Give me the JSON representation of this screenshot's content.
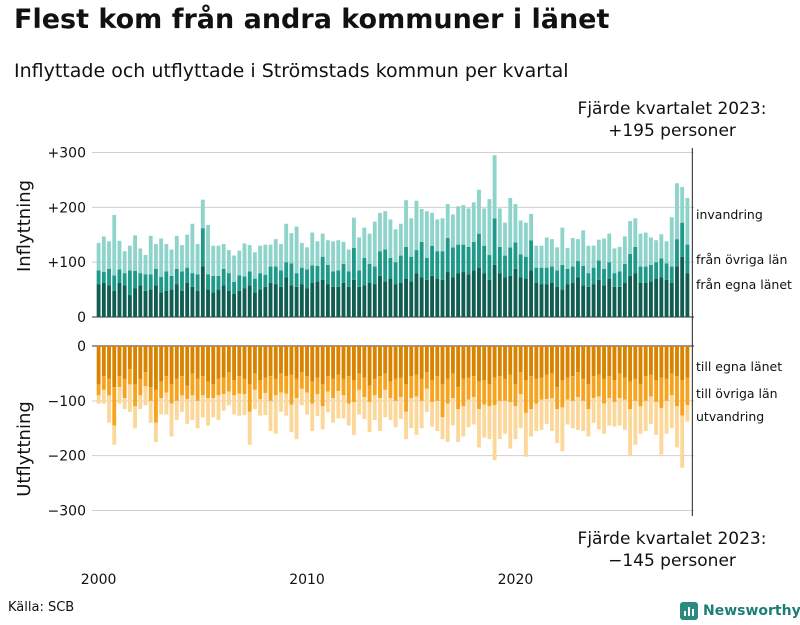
{
  "title": "Flest kom från andra kommuner i länet",
  "subtitle": "Inflyttade och utflyttade i Strömstads kommun per kvartal",
  "source": "Källa: SCB",
  "brand": "Newsworthy",
  "colors": {
    "in_egna": "#0f5e51",
    "in_ovriga": "#1e9a8b",
    "in_utland": "#8fd4cb",
    "out_egna": "#d98300",
    "out_ovriga": "#f6a41f",
    "out_utland": "#fcd79a",
    "grid": "#d0d0d0",
    "axis": "#333333",
    "marker": "#222222"
  },
  "annotations": {
    "top_line1": "Fjärde kvartalet 2023:",
    "top_line2": "+195 personer",
    "bottom_line1": "Fjärde kvartalet 2023:",
    "bottom_line2": "−145 personer"
  },
  "chart_data": {
    "type": "bar",
    "stacked": true,
    "x_label_every": 4,
    "start_year": 2000,
    "quarters_per_year": 4,
    "x_tick_labels": [
      "2000",
      "2010",
      "2020"
    ],
    "panels": [
      {
        "ylabel": "Inflyttning",
        "ylim": [
          0,
          310
        ],
        "yticks": [
          0,
          100,
          200,
          300
        ],
        "ytick_labels": [
          "0",
          "+100",
          "+200",
          "+300"
        ],
        "series": [
          {
            "name": "från egna länet",
            "values": [
              60,
              62,
              58,
              48,
              62,
              58,
              40,
              52,
              58,
              48,
              50,
              58,
              45,
              48,
              50,
              60,
              48,
              62,
              55,
              48,
              92,
              50,
              45,
              50,
              58,
              48,
              42,
              48,
              52,
              58,
              45,
              50,
              55,
              62,
              60,
              55,
              72,
              58,
              55,
              60,
              52,
              62,
              65,
              68,
              60,
              55,
              55,
              62,
              55,
              68,
              55,
              58,
              62,
              60,
              75,
              65,
              70,
              60,
              62,
              70,
              65,
              80,
              72,
              68,
              75,
              70,
              68,
              82,
              72,
              80,
              82,
              78,
              85,
              90,
              80,
              68,
              95,
              80,
              72,
              75,
              88,
              72,
              70,
              85,
              62,
              60,
              60,
              62,
              55,
              50,
              60,
              62,
              72,
              58,
              55,
              60,
              68,
              58,
              70,
              55,
              55,
              62,
              75,
              80,
              62,
              62,
              65,
              70,
              72,
              68,
              62,
              92,
              110,
              80
            ]
          },
          {
            "name": "från övriga län",
            "values": [
              25,
              20,
              30,
              28,
              25,
              22,
              45,
              32,
              22,
              30,
              28,
              30,
              28,
              35,
              25,
              28,
              35,
              28,
              25,
              30,
              70,
              28,
              30,
              25,
              30,
              32,
              22,
              28,
              22,
              25,
              25,
              30,
              22,
              30,
              32,
              30,
              28,
              40,
              25,
              30,
              35,
              32,
              28,
              42,
              35,
              28,
              30,
              35,
              28,
              58,
              30,
              50,
              35,
              32,
              45,
              58,
              38,
              40,
              50,
              58,
              45,
              42,
              65,
              40,
              55,
              50,
              52,
              62,
              55,
              52,
              50,
              50,
              52,
              62,
              50,
              45,
              85,
              48,
              40,
              52,
              48,
              42,
              40,
              55,
              28,
              30,
              30,
              30,
              30,
              45,
              28,
              30,
              30,
              35,
              25,
              30,
              35,
              30,
              30,
              25,
              28,
              35,
              40,
              48,
              30,
              30,
              30,
              30,
              35,
              30,
              30,
              50,
              62,
              52
            ]
          },
          {
            "name": "invandring",
            "values": [
              50,
              65,
              50,
              110,
              52,
              40,
              45,
              65,
              45,
              35,
              70,
              45,
              70,
              50,
              48,
              60,
              48,
              60,
              90,
              55,
              52,
              90,
              55,
              55,
              45,
              42,
              48,
              45,
              60,
              48,
              48,
              50,
              55,
              40,
              50,
              48,
              70,
              55,
              85,
              45,
              40,
              60,
              45,
              42,
              45,
              55,
              55,
              40,
              40,
              55,
              60,
              55,
              55,
              82,
              70,
              70,
              70,
              60,
              58,
              85,
              70,
              90,
              60,
              85,
              60,
              58,
              60,
              62,
              60,
              70,
              72,
              70,
              72,
              80,
              68,
              102,
              115,
              70,
              60,
              90,
              70,
              62,
              62,
              48,
              40,
              40,
              55,
              50,
              42,
              68,
              38,
              52,
              40,
              65,
              50,
              40,
              38,
              55,
              52,
              45,
              45,
              50,
              60,
              52,
              60,
              62,
              50,
              40,
              44,
              40,
              90,
              102,
              65,
              85
            ]
          }
        ],
        "label_series": [
          "invandring",
          "från övriga län",
          "från egna länet"
        ]
      },
      {
        "ylabel": "Utflyttning",
        "ylim": [
          -310,
          0
        ],
        "yticks": [
          0,
          -100,
          -200,
          -300
        ],
        "ytick_labels": [
          "0",
          "−100",
          "−200",
          "−300"
        ],
        "series": [
          {
            "name": "till egna länet",
            "values": [
              -70,
              -55,
              -60,
              -75,
              -55,
              -60,
              -42,
              -70,
              -60,
              -48,
              -75,
              -80,
              -65,
              -55,
              -70,
              -60,
              -55,
              -72,
              -50,
              -60,
              -55,
              -65,
              -70,
              -60,
              -58,
              -48,
              -62,
              -55,
              -60,
              -70,
              -50,
              -62,
              -58,
              -55,
              -60,
              -50,
              -55,
              -52,
              -60,
              -48,
              -55,
              -65,
              -58,
              -70,
              -55,
              -60,
              -52,
              -60,
              -55,
              -62,
              -50,
              -58,
              -72,
              -60,
              -55,
              -50,
              -65,
              -60,
              -58,
              -70,
              -55,
              -52,
              -60,
              -48,
              -62,
              -55,
              -70,
              -60,
              -50,
              -75,
              -60,
              -58,
              -55,
              -65,
              -62,
              -70,
              -58,
              -55,
              -60,
              -52,
              -70,
              -48,
              -62,
              -55,
              -60,
              -58,
              -52,
              -50,
              -75,
              -62,
              -58,
              -55,
              -48,
              -60,
              -70,
              -55,
              -52,
              -60,
              -55,
              -62,
              -50,
              -58,
              -65,
              -60,
              -70,
              -55,
              -52,
              -62,
              -58,
              -60,
              -50,
              -55,
              -62,
              -58
            ]
          },
          {
            "name": "till övriga län",
            "values": [
              -20,
              -25,
              -30,
              -70,
              -20,
              -35,
              -28,
              -40,
              -30,
              -25,
              -25,
              -60,
              -30,
              -30,
              -35,
              -40,
              -35,
              -25,
              -40,
              -40,
              -35,
              -30,
              -25,
              -30,
              -30,
              -35,
              -28,
              -32,
              -28,
              -50,
              -30,
              -35,
              -28,
              -45,
              -30,
              -35,
              -32,
              -55,
              -35,
              -30,
              -30,
              -40,
              -30,
              -40,
              -28,
              -35,
              -30,
              -30,
              -50,
              -40,
              -30,
              -35,
              -30,
              -30,
              -40,
              -30,
              -30,
              -40,
              -35,
              -50,
              -40,
              -40,
              -40,
              -30,
              -40,
              -45,
              -60,
              -45,
              -45,
              -40,
              -50,
              -40,
              -38,
              -50,
              -45,
              -40,
              -50,
              -45,
              -40,
              -50,
              -40,
              -40,
              -60,
              -60,
              -45,
              -40,
              -45,
              -45,
              -40,
              -50,
              -40,
              -45,
              -45,
              -40,
              -45,
              -40,
              -40,
              -45,
              -40,
              -40,
              -45,
              -40,
              -50,
              -40,
              -40,
              -45,
              -40,
              -40,
              -55,
              -40,
              -40,
              -55,
              -65,
              -50
            ]
          },
          {
            "name": "utvandring",
            "values": [
              -15,
              -25,
              -50,
              -35,
              -30,
              -20,
              -50,
              -40,
              -25,
              -35,
              -40,
              -35,
              -30,
              -40,
              -60,
              -35,
              -30,
              -45,
              -45,
              -50,
              -40,
              -50,
              -35,
              -45,
              -30,
              -25,
              -35,
              -40,
              -38,
              -60,
              -35,
              -30,
              -40,
              -55,
              -70,
              -35,
              -40,
              -50,
              -75,
              -30,
              -40,
              -50,
              -40,
              -42,
              -38,
              -45,
              -50,
              -42,
              -40,
              -60,
              -45,
              -40,
              -55,
              -45,
              -60,
              -50,
              -40,
              -48,
              -40,
              -50,
              -55,
              -70,
              -50,
              -42,
              -45,
              -55,
              -40,
              -70,
              -50,
              -60,
              -55,
              -50,
              -50,
              -70,
              -60,
              -60,
              -100,
              -70,
              -60,
              -85,
              -60,
              -62,
              -80,
              -50,
              -50,
              -55,
              -45,
              -60,
              -62,
              -80,
              -45,
              -50,
              -60,
              -55,
              -50,
              -45,
              -60,
              -55,
              -50,
              -45,
              -50,
              -55,
              -85,
              -80,
              -50,
              -55,
              -50,
              -60,
              -85,
              -60,
              -60,
              -75,
              -95,
              -30
            ]
          }
        ],
        "label_series": [
          "till egna länet",
          "till övriga län",
          "utvandring"
        ]
      }
    ]
  }
}
